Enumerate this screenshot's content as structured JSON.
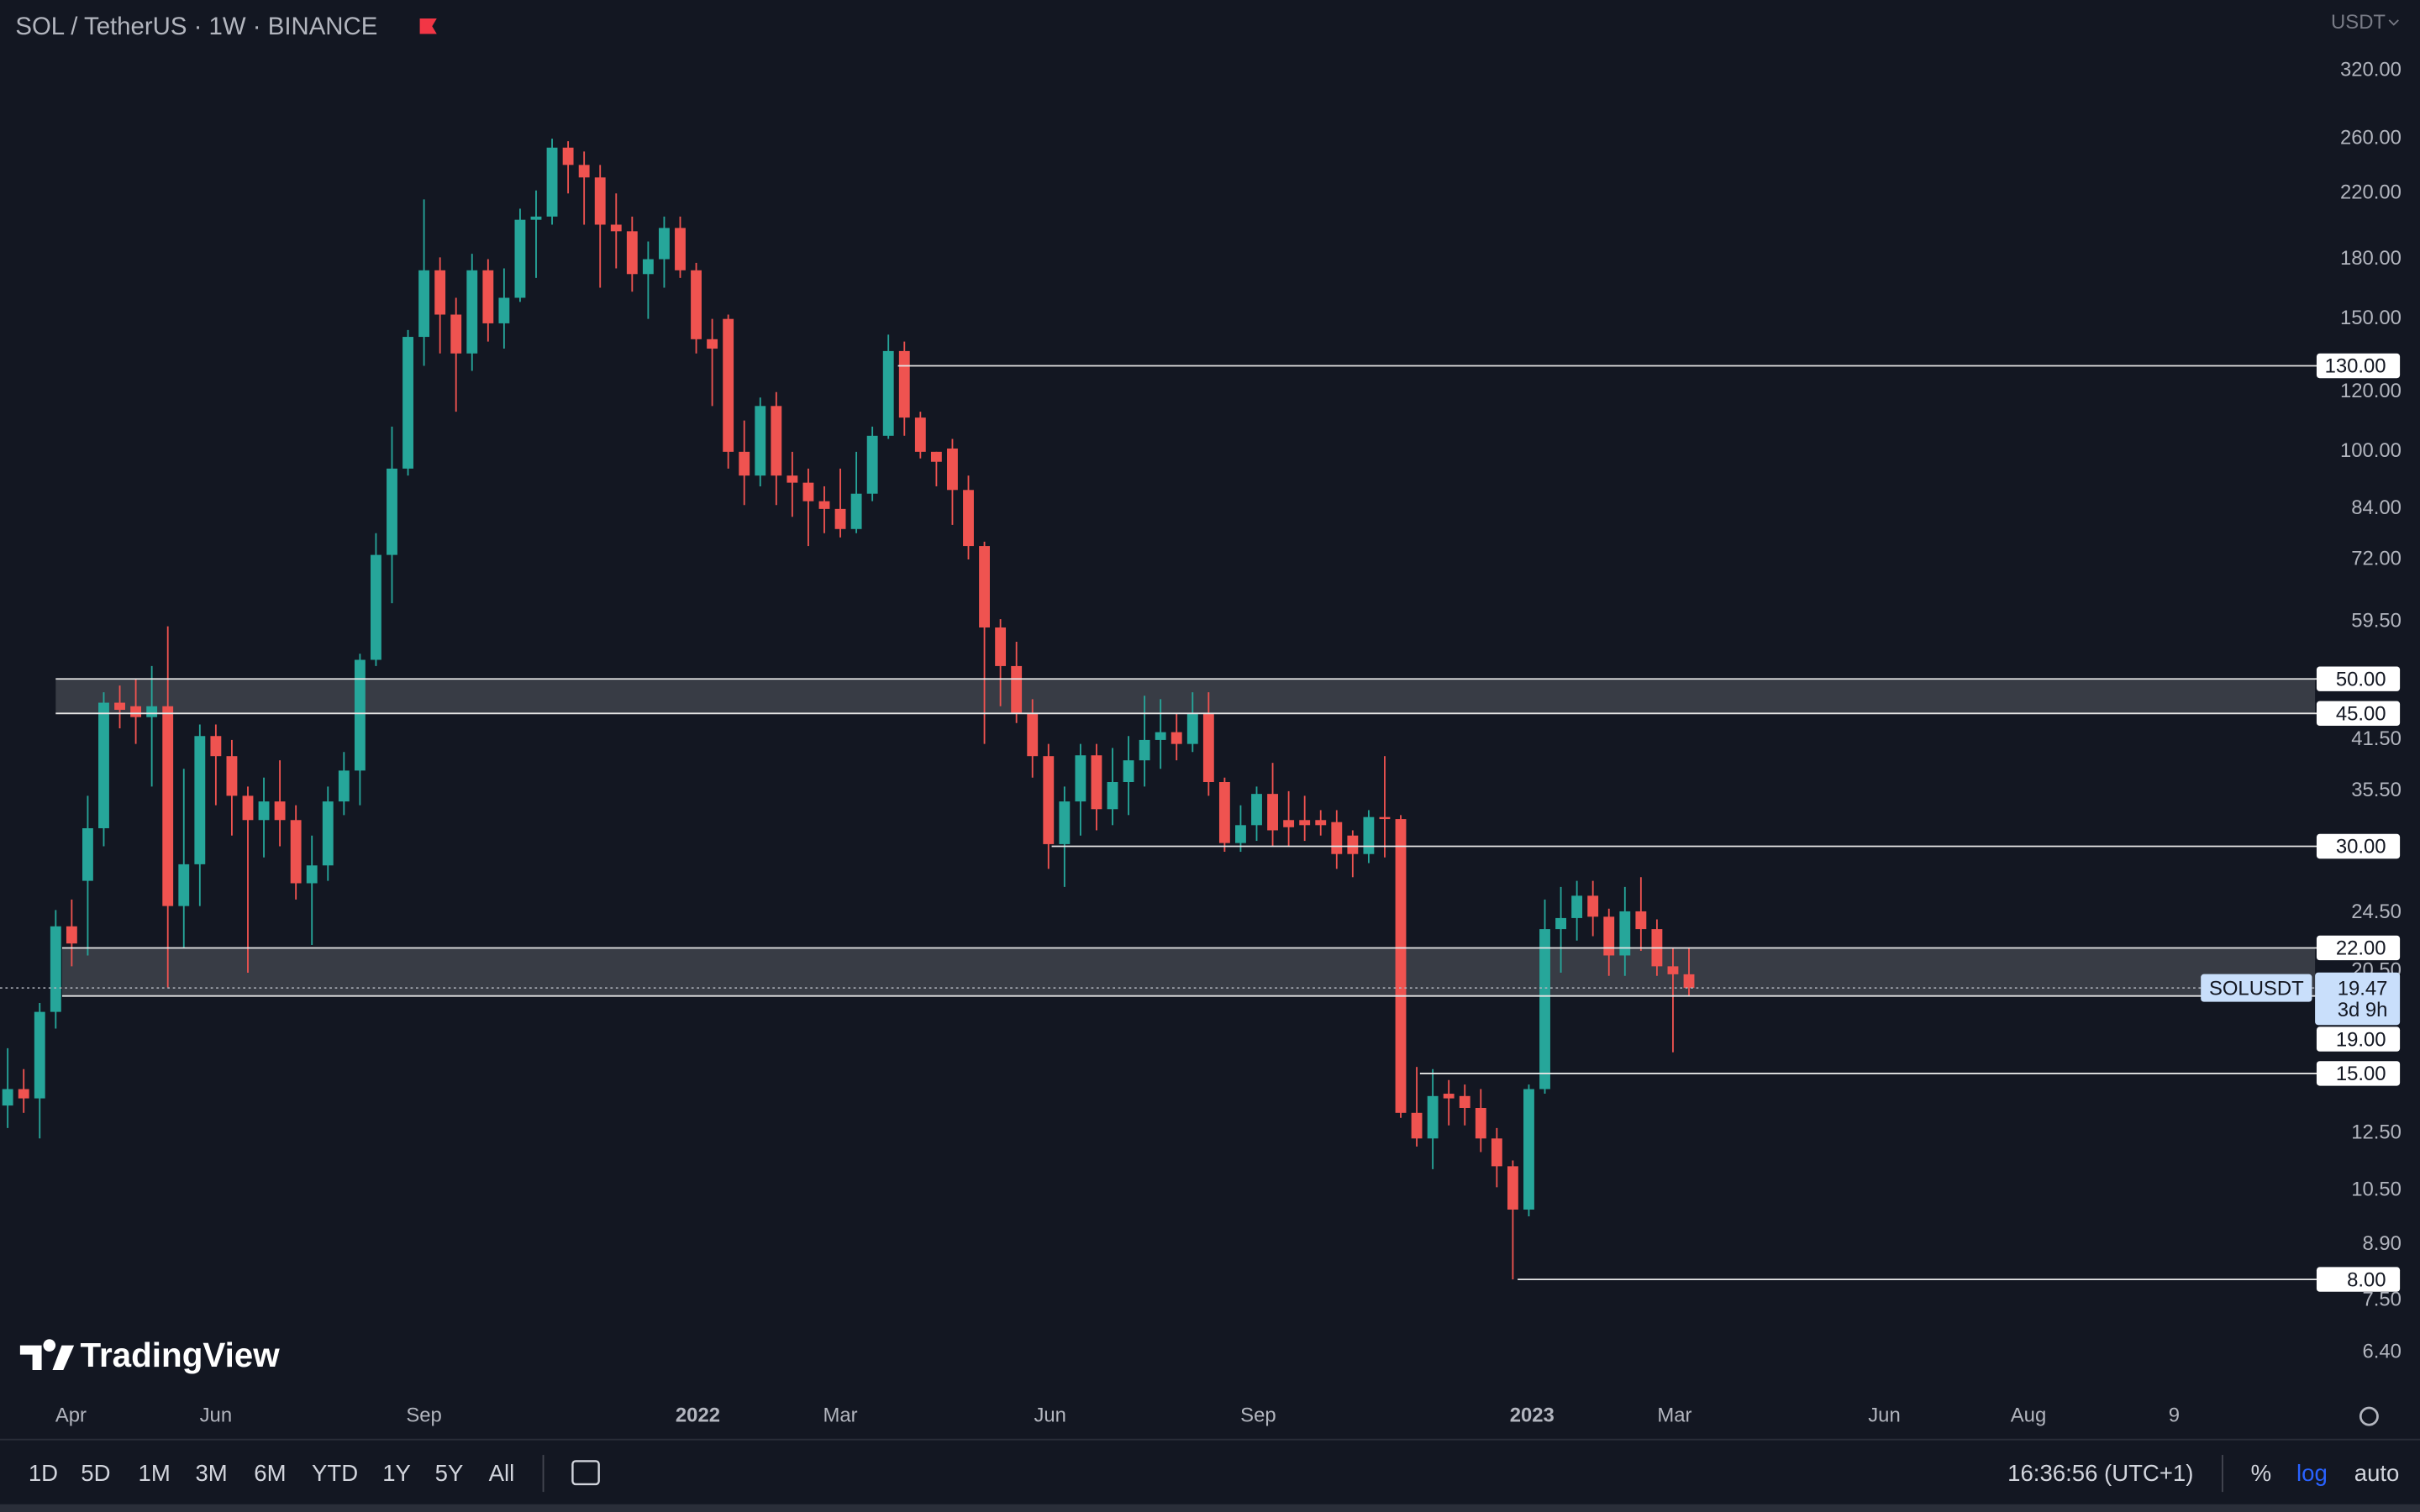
{
  "header": {
    "title": "SOL / TetherUS · 1W · BINANCE",
    "currency": "USDT"
  },
  "logo": "TradingView",
  "chart_data": {
    "type": "candlestick",
    "log_scale": true,
    "colors": {
      "up": "#26a69a",
      "down": "#ef5350"
    },
    "categories": [
      null,
      null,
      null,
      null,
      null,
      null,
      null,
      null,
      null,
      null,
      null,
      null,
      null,
      null,
      null,
      null,
      null,
      null,
      null,
      null,
      null,
      null,
      null,
      null,
      null,
      null,
      null,
      null,
      null,
      null,
      null,
      null,
      null,
      null,
      null,
      null,
      null,
      null,
      null,
      null,
      null,
      null,
      null,
      null,
      null,
      null,
      null,
      null,
      null,
      null,
      null,
      null,
      null,
      null,
      null,
      null,
      null,
      null,
      null,
      null,
      null,
      null,
      null,
      null,
      null,
      null,
      null,
      null,
      null,
      null,
      null,
      null,
      null,
      null,
      null,
      null,
      null,
      null,
      null,
      null,
      null,
      null,
      null,
      null,
      null,
      null,
      null,
      null,
      null,
      null,
      null,
      null,
      null,
      null,
      null,
      null,
      null,
      null,
      null,
      null,
      null,
      null,
      null,
      null,
      null,
      null
    ],
    "open": [
      13.6,
      14.3,
      13.9,
      18.1,
      23.5,
      27,
      31.7,
      46.5,
      46,
      44.5,
      46,
      25,
      28.4,
      42,
      39.5,
      35,
      32.5,
      34.4,
      32.5,
      26.8,
      28.3,
      34.4,
      37.8,
      53,
      73,
      95,
      142,
      174,
      152,
      135,
      174,
      148,
      160,
      203,
      205,
      253,
      240,
      231,
      200,
      196,
      172,
      180,
      198,
      174,
      141,
      150,
      100,
      93,
      115,
      93,
      91,
      86,
      84,
      79,
      88,
      105,
      136,
      111,
      100,
      101,
      89,
      75,
      58.5,
      52,
      45,
      39.5,
      30.2,
      34.4,
      39.6,
      33.6,
      36.5,
      39,
      41.5,
      42.5,
      41,
      45,
      36.5,
      30.3,
      32,
      35.2,
      32.5,
      32.5,
      32.5,
      32.3,
      31,
      29.3,
      32.8,
      32.6,
      13.3,
      12.3,
      14.1,
      14,
      13.5,
      12.3,
      11.3,
      9.9,
      14.3,
      23.3,
      24.1,
      25.8,
      24.2,
      21.5,
      24.6,
      23.3,
      20.8,
      20.3
    ],
    "high": [
      16.2,
      15.2,
      18.6,
      24.7,
      25.5,
      35,
      48,
      49,
      50,
      52,
      58.7,
      38,
      43.5,
      43.5,
      41.5,
      36,
      37,
      39,
      34,
      31,
      36,
      40,
      54,
      78,
      108,
      145,
      216,
      181,
      160,
      183,
      180,
      175,
      210,
      222,
      260,
      258,
      250,
      240,
      220,
      205,
      190,
      205,
      205,
      178,
      150,
      152,
      110,
      118,
      120,
      100,
      95,
      90,
      95,
      100,
      108,
      143,
      140,
      113,
      100,
      104,
      93,
      76,
      60,
      56,
      47,
      41,
      36,
      41,
      41,
      40.5,
      42,
      47.5,
      47,
      45,
      48,
      48,
      37,
      34,
      36,
      38.7,
      35.5,
      35,
      33.5,
      33.5,
      31.5,
      33.5,
      39.5,
      33,
      15.3,
      15.2,
      14.7,
      14.5,
      14.3,
      12.7,
      11.5,
      14.5,
      25.5,
      26.5,
      27,
      27,
      24.8,
      26.5,
      27.3,
      24,
      22,
      22
    ],
    "low": [
      12.7,
      13.3,
      12.3,
      17.2,
      20.8,
      21.5,
      30,
      43,
      41,
      36,
      19.5,
      22,
      25,
      34,
      31,
      20.4,
      29,
      30,
      25.5,
      22.2,
      27,
      33,
      34,
      52,
      63,
      93,
      130,
      135,
      113,
      128,
      140,
      137,
      158,
      170,
      200,
      220,
      200,
      165,
      175,
      163,
      150,
      165,
      170,
      135,
      115,
      95,
      85,
      90,
      85,
      82,
      75,
      78,
      77,
      78,
      86,
      104,
      105,
      98,
      90,
      80,
      72,
      41,
      46,
      43.7,
      37,
      28,
      26.5,
      31,
      31.5,
      32,
      33,
      36,
      38,
      39,
      40,
      35,
      29.5,
      29.5,
      30.5,
      30,
      30,
      30.5,
      31,
      28,
      27.3,
      28.5,
      29,
      13.1,
      12,
      11.2,
      12.8,
      12.8,
      11.8,
      10.6,
      8.0,
      9.7,
      14.1,
      20.4,
      22.5,
      22.8,
      20.2,
      20.2,
      21.8,
      20.2,
      16,
      19
    ],
    "close": [
      14.3,
      13.9,
      18.1,
      23.5,
      22.3,
      31.7,
      46.5,
      45.5,
      44.5,
      46,
      25,
      28.4,
      42,
      39.5,
      35,
      32.5,
      34.4,
      32.5,
      26.8,
      28.3,
      34.4,
      37.8,
      53,
      73,
      95,
      142,
      174,
      152,
      135,
      174,
      148,
      160,
      203,
      205,
      253,
      240,
      231,
      200,
      196,
      172,
      180,
      198,
      174,
      141,
      137,
      100,
      93,
      115,
      93,
      91,
      86,
      84,
      79,
      88,
      105,
      136,
      111,
      100,
      97,
      89,
      75,
      58.5,
      52,
      45,
      39.5,
      30.2,
      34.4,
      39.6,
      33.6,
      36.5,
      39,
      41.5,
      42.5,
      41,
      45,
      36.5,
      30.3,
      32,
      35.2,
      31.5,
      31.8,
      32,
      32,
      29.3,
      29.3,
      32.8,
      32.6,
      13.3,
      12.3,
      14,
      13.9,
      13.5,
      12.3,
      11.3,
      9.9,
      14.3,
      23.3,
      24.1,
      25.8,
      24.2,
      21.5,
      24.6,
      23.3,
      20.8,
      20.3,
      19.47
    ],
    "xlim": [
      -0.48,
      144.1
    ],
    "ylim": [
      5.6,
      397
    ],
    "xticks": [
      {
        "value": 3.95,
        "label": "Apr"
      },
      {
        "value": 13.0,
        "label": "Jun"
      },
      {
        "value": 26.0,
        "label": "Sep"
      },
      {
        "value": 43.1,
        "label": "2022"
      },
      {
        "value": 52.0,
        "label": "Mar"
      },
      {
        "value": 65.1,
        "label": "Jun"
      },
      {
        "value": 78.1,
        "label": "Sep"
      },
      {
        "value": 95.2,
        "label": "2023"
      },
      {
        "value": 104.1,
        "label": "Mar"
      },
      {
        "value": 117.2,
        "label": "Jun"
      },
      {
        "value": 126.2,
        "label": "Aug"
      },
      {
        "value": 135.3,
        "label": "9"
      }
    ],
    "yticks": [
      {
        "value": 320,
        "label": "320.00"
      },
      {
        "value": 260,
        "label": "260.00"
      },
      {
        "value": 220,
        "label": "220.00"
      },
      {
        "value": 180,
        "label": "180.00"
      },
      {
        "value": 150,
        "label": "150.00"
      },
      {
        "value": 120,
        "label": "120.00"
      },
      {
        "value": 100,
        "label": "100.00"
      },
      {
        "value": 84,
        "label": "84.00"
      },
      {
        "value": 72,
        "label": "72.00"
      },
      {
        "value": 59.5,
        "label": "59.50"
      },
      {
        "value": 41.5,
        "label": "41.50"
      },
      {
        "value": 35.5,
        "label": "35.50"
      },
      {
        "value": 24.5,
        "label": "24.50"
      },
      {
        "value": 20.5,
        "label": "20.50"
      },
      {
        "value": 12.5,
        "label": "12.50"
      },
      {
        "value": 10.5,
        "label": "10.50"
      },
      {
        "value": 8.9,
        "label": "8.90"
      },
      {
        "value": 7.5,
        "label": "7.50"
      },
      {
        "value": 6.4,
        "label": "6.40"
      }
    ],
    "levels": [
      {
        "value": 130,
        "label": "130.00"
      },
      {
        "value": 50,
        "label": "50.00"
      },
      {
        "value": 45,
        "label": "45.00"
      },
      {
        "value": 30,
        "label": "30.00"
      },
      {
        "value": 22,
        "label": "22.00"
      },
      {
        "value": 19,
        "label": "19.00"
      },
      {
        "value": 15,
        "label": "15.00"
      },
      {
        "value": 8,
        "label": "8.00"
      }
    ],
    "last": {
      "label": "SOLUSDT",
      "value": 19.47,
      "countdown": "3d 9h"
    }
  },
  "toolbar": {
    "ranges": [
      "1D",
      "5D",
      "1M",
      "3M",
      "6M",
      "YTD",
      "1Y",
      "5Y",
      "All"
    ],
    "clock": "16:36:56 (UTC+1)",
    "percent": "%",
    "log": "log",
    "auto": "auto"
  }
}
